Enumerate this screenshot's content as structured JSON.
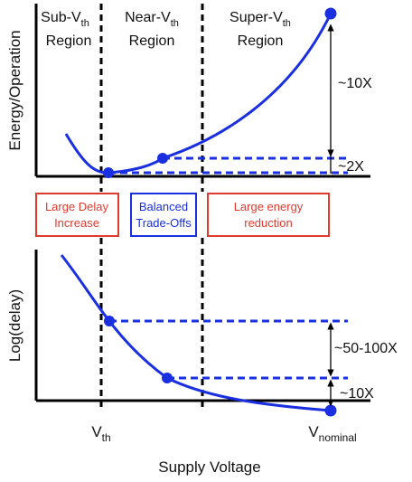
{
  "colors": {
    "curve": "#1a2fe0",
    "axis": "#000000",
    "red_box": "#e03a2f",
    "blue_box": "#1a2fe0"
  },
  "regions": {
    "sub": {
      "name": "Sub-V",
      "sub": "th",
      "line2": "Region"
    },
    "near": {
      "name": "Near-V",
      "sub": "th",
      "line2": "Region"
    },
    "super": {
      "name": "Super-V",
      "sub": "th",
      "line2": "Region"
    }
  },
  "top_plot": {
    "ylabel": "Energy/Operation",
    "ann_big": "~10X",
    "ann_small": "~2X"
  },
  "bottom_plot": {
    "ylabel": "Log(delay)",
    "ann_big": "~50-100X",
    "ann_small": "~10X"
  },
  "boxes": {
    "sub": {
      "line1": "Large Delay",
      "line2": "Increase"
    },
    "near": {
      "line1": "Balanced",
      "line2": "Trade-Offs"
    },
    "super": {
      "line1": "Large energy",
      "line2": "reduction"
    }
  },
  "x_axis": {
    "title": "Supply Voltage",
    "tick_vth": {
      "main": "V",
      "sub": "th"
    },
    "tick_vnom": {
      "main": "V",
      "sub": "nominal"
    }
  }
}
